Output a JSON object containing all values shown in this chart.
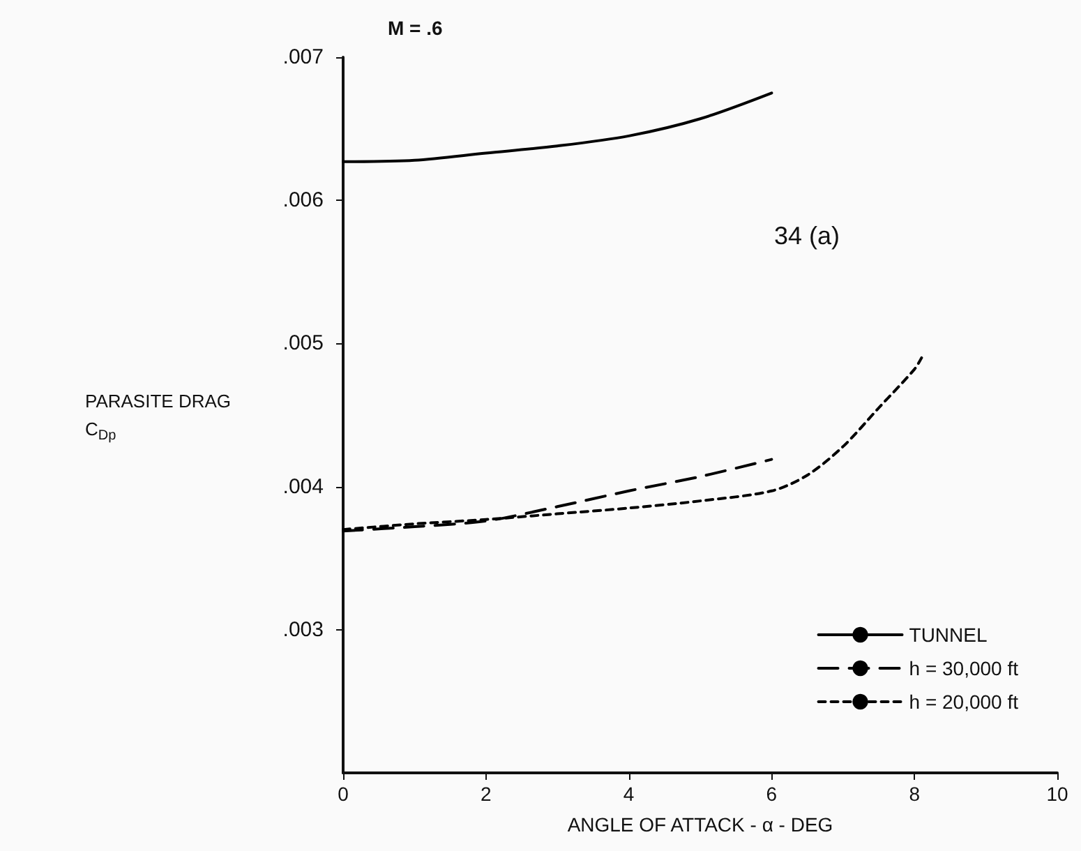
{
  "chart_data": {
    "type": "line",
    "title": "M = .6",
    "xlabel": "ANGLE OF ATTACK - α - DEG",
    "ylabel": "PARASITE DRAG\nC$_{Dp}$",
    "annotations": [
      "34 (a)"
    ],
    "xlim": [
      0,
      10
    ],
    "xticks": [
      0,
      2,
      4,
      6,
      8,
      10
    ],
    "ylim": [
      0.002,
      0.007
    ],
    "yticks": [
      {
        "value": 0.003,
        "label": ".003"
      },
      {
        "value": 0.004,
        "label": ".004"
      },
      {
        "value": 0.005,
        "label": ".005"
      },
      {
        "value": 0.006,
        "label": ".006"
      },
      {
        "value": 0.007,
        "label": ".007"
      }
    ],
    "grid": false,
    "legend": "bottom right",
    "marker": "none",
    "series": [
      {
        "name": "TUNNEL",
        "color": "#000000",
        "line_style": "solid",
        "x": [
          0,
          1,
          2,
          3,
          4,
          5,
          6
        ],
        "values": [
          0.00627,
          0.00628,
          0.00633,
          0.00638,
          0.00645,
          0.00657,
          0.00675
        ]
      },
      {
        "name": "h = 30,000 ft",
        "color": "#000000",
        "line_style": "dashed",
        "x": [
          0,
          1,
          2,
          3,
          4,
          5,
          6
        ],
        "values": [
          0.00369,
          0.00372,
          0.00376,
          0.00386,
          0.00397,
          0.00407,
          0.00419
        ]
      },
      {
        "name": "h = 20,000 ft",
        "color": "#000000",
        "line_style": "dotted",
        "x": [
          0,
          1,
          2,
          3,
          4,
          5,
          6,
          6.5,
          7,
          7.5,
          8,
          8.1
        ],
        "values": [
          0.0037,
          0.00374,
          0.00377,
          0.00381,
          0.00385,
          0.0039,
          0.00397,
          0.00408,
          0.00428,
          0.00455,
          0.00482,
          0.0049
        ]
      }
    ]
  }
}
